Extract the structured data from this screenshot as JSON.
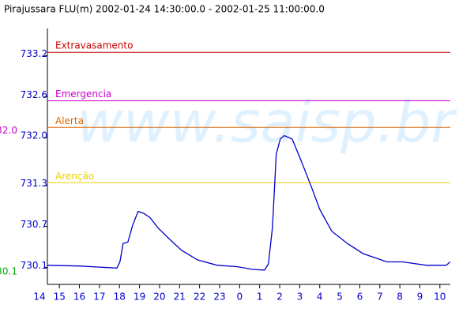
{
  "chart_data": {
    "type": "line",
    "title": "Pirajussara FLU(m) 2002-01-24 14:30:00.0 - 2002-01-25 11:00:00.0",
    "watermark": "www.saisp.br",
    "max_label": "32.0",
    "min_label": "30.1",
    "xlim": [
      14.4,
      34.52
    ],
    "xticks": [
      14,
      15,
      16,
      17,
      18,
      19,
      20,
      21,
      22,
      23,
      {
        "value": 24,
        "label": "0"
      },
      {
        "value": 25,
        "label": "1"
      },
      {
        "value": 26,
        "label": "2"
      },
      {
        "value": 27,
        "label": "3"
      },
      {
        "value": 28,
        "label": "4"
      },
      {
        "value": 29,
        "label": "5"
      },
      {
        "value": 30,
        "label": "6"
      },
      {
        "value": 31,
        "label": "7"
      },
      {
        "value": 32,
        "label": "8"
      },
      {
        "value": 33,
        "label": "9"
      },
      {
        "value": 34,
        "label": "10"
      }
    ],
    "ylim": [
      729.85,
      733.6
    ],
    "yticks": [
      733.2,
      732.6,
      {
        "value": 732.0,
        "label": "732.0"
      },
      731.3,
      730.7,
      730.1
    ],
    "thresholds": [
      {
        "name": "Extravasamento",
        "value": 733.25,
        "color": "#cc0000"
      },
      {
        "name": "Emergencia",
        "value": 732.54,
        "color": "#cc00cc"
      },
      {
        "name": "Alerta",
        "value": 732.15,
        "color": "#dd6600"
      },
      {
        "name": "Arenção",
        "value": 731.34,
        "color": "#e8d000"
      }
    ],
    "series": [
      {
        "color": "#0000cc",
        "x": [
          14.39,
          15.97,
          17.87,
          18.02,
          18.18,
          18.42,
          18.65,
          18.93,
          19.21,
          19.52,
          19.92,
          20.51,
          21.1,
          21.89,
          22.88,
          23.86,
          24.65,
          25.24,
          25.44,
          25.64,
          25.83,
          26.03,
          26.23,
          26.62,
          27.02,
          27.61,
          28.0,
          28.6,
          29.38,
          30.17,
          31.36,
          32.15,
          33.33,
          34.32,
          34.51
        ],
        "values": [
          730.13,
          730.12,
          730.09,
          730.18,
          730.45,
          730.47,
          730.71,
          730.92,
          730.89,
          730.83,
          730.68,
          730.51,
          730.35,
          730.21,
          730.13,
          730.11,
          730.07,
          730.06,
          730.15,
          730.69,
          731.76,
          731.98,
          732.03,
          731.98,
          731.7,
          731.26,
          730.95,
          730.63,
          730.45,
          730.3,
          730.18,
          730.18,
          730.13,
          730.13,
          730.18
        ]
      }
    ]
  }
}
